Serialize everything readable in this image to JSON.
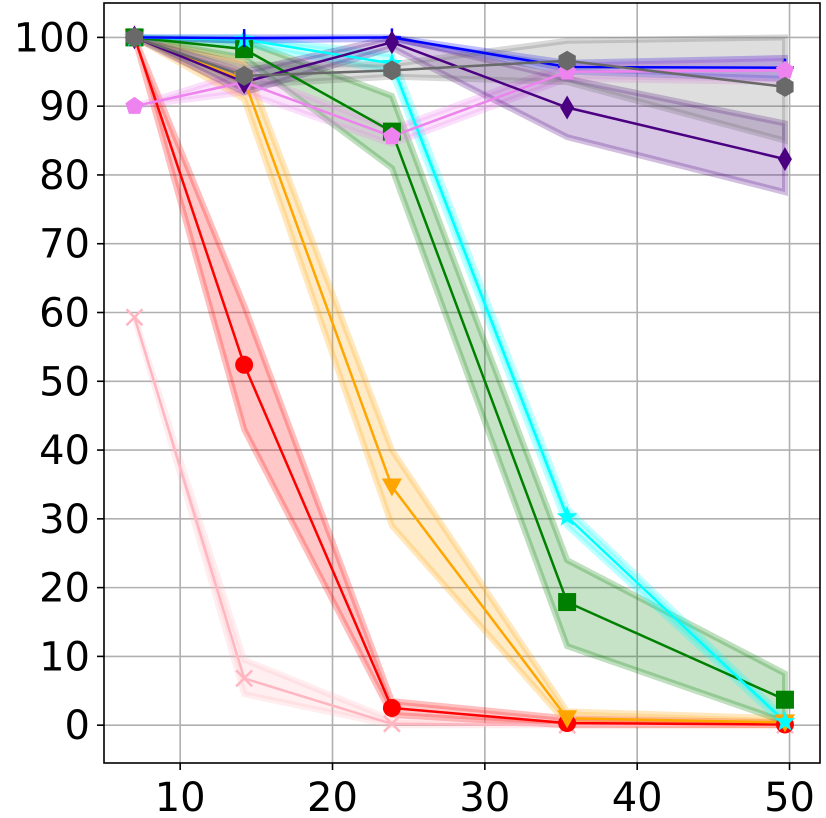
{
  "chart_data": {
    "type": "line",
    "title": "",
    "xlabel": "",
    "ylabel": "",
    "xlim": [
      5,
      52
    ],
    "ylim": [
      -5.5,
      105
    ],
    "grid": true,
    "xticks": [
      10,
      20,
      30,
      40,
      50
    ],
    "yticks": [
      0,
      10,
      20,
      30,
      40,
      50,
      60,
      70,
      80,
      90,
      100
    ],
    "x": [
      7,
      14.2,
      23.9,
      35.4,
      49.7
    ],
    "series": [
      {
        "color": "#ffb6c1",
        "marker": "x",
        "values": [
          59.3,
          6.8,
          0.2,
          0.0,
          0.0
        ],
        "band": [
          [
            59.3,
            59.3
          ],
          [
            4.5,
            9.5
          ],
          [
            0,
            0.8
          ],
          [
            0,
            0.3
          ],
          [
            0,
            0.2
          ]
        ]
      },
      {
        "color": "#ff0000",
        "marker": "o",
        "values": [
          100,
          52.4,
          2.5,
          0.3,
          0.1
        ],
        "band": [
          [
            100,
            100
          ],
          [
            43,
            61
          ],
          [
            1.5,
            3.5
          ],
          [
            0,
            1
          ],
          [
            0,
            0.4
          ]
        ]
      },
      {
        "color": "#ffa500",
        "marker": "v",
        "values": [
          100,
          93.8,
          34.7,
          1.0,
          0.4
        ],
        "band": [
          [
            100,
            100
          ],
          [
            91,
            96.5
          ],
          [
            29,
            40
          ],
          [
            0.2,
            2
          ],
          [
            0,
            1
          ]
        ]
      },
      {
        "color": "#008000",
        "marker": "s",
        "values": [
          100,
          98.3,
          86.3,
          17.9,
          3.7
        ],
        "band": [
          [
            100,
            100
          ],
          [
            97,
            99.5
          ],
          [
            81,
            91.5
          ],
          [
            11.5,
            24
          ],
          [
            0.5,
            7.5
          ]
        ]
      },
      {
        "color": "#00ffff",
        "marker": "*",
        "values": [
          100,
          99.7,
          96.2,
          30.3,
          0.5
        ],
        "band": [
          [
            100,
            100
          ],
          [
            99,
            100
          ],
          [
            95,
            97.5
          ],
          [
            29,
            31.5
          ],
          [
            0,
            1
          ]
        ]
      },
      {
        "color": "#0000ff",
        "marker": "+",
        "values": [
          100,
          99.9,
          100.0,
          95.7,
          95.6
        ],
        "band": [
          [
            100,
            100
          ],
          [
            99.5,
            100
          ],
          [
            99.8,
            100
          ],
          [
            95,
            96.3
          ],
          [
            94,
            97
          ]
        ]
      },
      {
        "color": "#ee82ee",
        "marker": "p",
        "values": [
          90.0,
          93.5,
          85.6,
          95.0,
          95.2
        ],
        "band": [
          [
            90,
            90
          ],
          [
            92,
            95
          ],
          [
            84.5,
            86.7
          ],
          [
            94,
            96
          ],
          [
            93.5,
            97
          ]
        ]
      },
      {
        "color": "#4b0082",
        "marker": "d",
        "values": [
          100,
          93.5,
          99.3,
          89.8,
          82.3
        ],
        "band": [
          [
            100,
            100
          ],
          [
            92,
            95
          ],
          [
            98.5,
            100
          ],
          [
            85.5,
            94
          ],
          [
            77.5,
            87.5
          ]
        ]
      },
      {
        "color": "#696969",
        "marker": "h",
        "values": [
          100,
          94.4,
          95.2,
          96.6,
          92.8
        ],
        "band": [
          [
            100,
            100
          ],
          [
            93,
            96
          ],
          [
            94.3,
            96.1
          ],
          [
            93.5,
            99.5
          ],
          [
            85,
            100
          ]
        ]
      }
    ]
  }
}
